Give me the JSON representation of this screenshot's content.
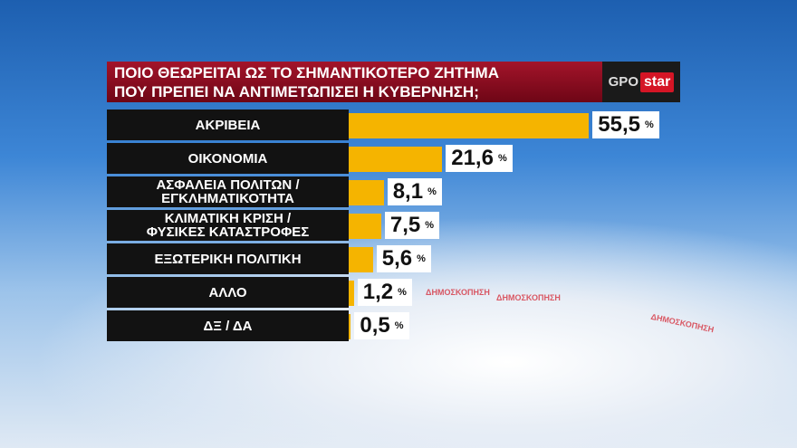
{
  "chart_data": {
    "type": "bar",
    "orientation": "horizontal",
    "title": [
      "ΠΟΙΟ ΘΕΩΡΕΙΤΑΙ ΩΣ ΤΟ ΣΗΜΑΝΤΙΚΟΤΕΡΟ ΖΗΤΗΜΑ",
      "ΠΟΥ ΠΡΕΠΕΙ ΝΑ ΑΝΤΙΜΕΤΩΠΙΣΕΙ Η  ΚΥΒΕΡΝΗΣΗ;"
    ],
    "logo": [
      "GPO",
      "star"
    ],
    "background_text": "ΔΗΜΟΣΚΟΠΗΣΗ",
    "categories": [
      "ΑΚΡΙΒΕΙΑ",
      "ΟΙΚΟΝΟΜΙΑ",
      "ΑΣΦΑΛΕΙΑ ΠΟΛΙΤΩΝ /\nΕΓΚΛΗΜΑΤΙΚΟΤΗΤΑ",
      "ΚΛΙΜΑΤΙΚΗ ΚΡΙΣΗ /\nΦΥΣΙΚΕΣ ΚΑΤΑΣΤΡΟΦΕΣ",
      "ΕΞΩΤΕΡΙΚΗ ΠΟΛΙΤΙΚΗ",
      "ΑΛΛΟ",
      "ΔΞ / ΔΑ"
    ],
    "values": [
      55.5,
      21.6,
      8.1,
      7.5,
      5.6,
      1.2,
      0.5
    ],
    "value_labels": [
      "55,5",
      "21,6",
      "8,1",
      "7,5",
      "5,6",
      "1,2",
      "0,5"
    ],
    "value_unit": "%",
    "color": "#f5b400"
  }
}
